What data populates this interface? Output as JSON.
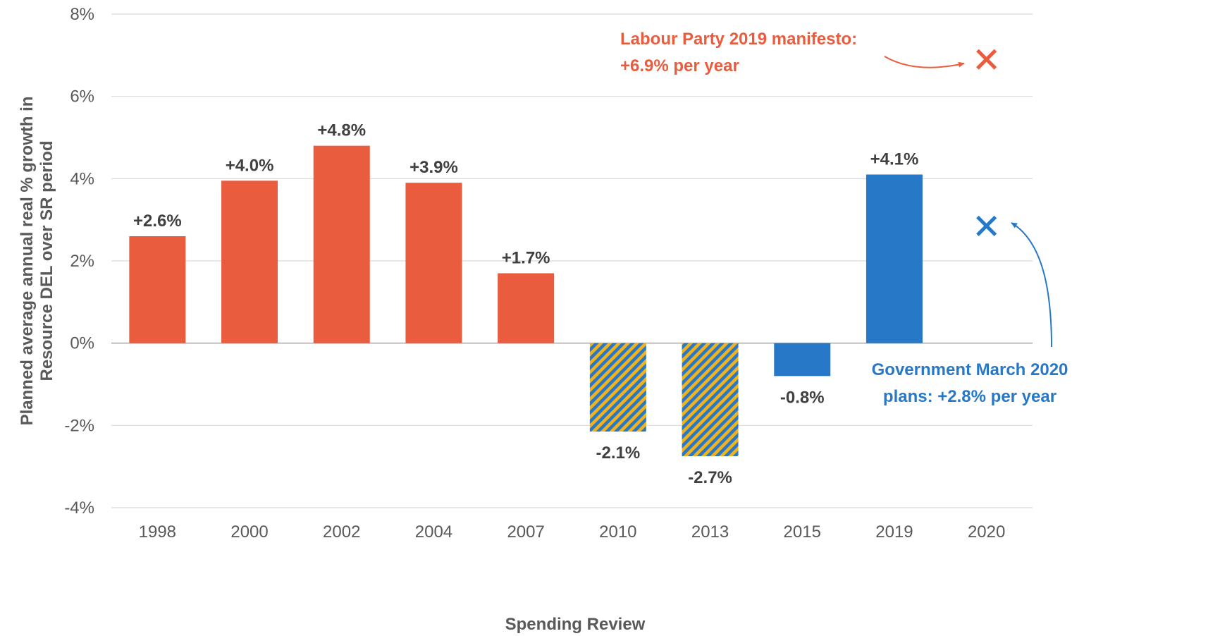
{
  "chart_data": {
    "type": "bar",
    "title": "",
    "xlabel": "Spending Review",
    "ylabel": "Planned average annual real % growth in Resource DEL over SR period",
    "ylim": [
      -4,
      8
    ],
    "yticks": [
      -4,
      -2,
      0,
      2,
      4,
      6,
      8
    ],
    "ytick_labels": [
      "-4%",
      "-2%",
      "0%",
      "2%",
      "4%",
      "6%",
      "8%"
    ],
    "grid": true,
    "categories": [
      "1998",
      "2000",
      "2002",
      "2004",
      "2007",
      "2010",
      "2013",
      "2015",
      "2019",
      "2020"
    ],
    "bars": [
      {
        "category": "1998",
        "value": 2.6,
        "label": "+2.6%",
        "style": "labour"
      },
      {
        "category": "2000",
        "value": 3.95,
        "label": "+4.0%",
        "style": "labour"
      },
      {
        "category": "2002",
        "value": 4.8,
        "label": "+4.8%",
        "style": "labour"
      },
      {
        "category": "2004",
        "value": 3.9,
        "label": "+3.9%",
        "style": "labour"
      },
      {
        "category": "2007",
        "value": 1.7,
        "label": "+1.7%",
        "style": "labour"
      },
      {
        "category": "2010",
        "value": -2.15,
        "label": "-2.1%",
        "style": "coalition"
      },
      {
        "category": "2013",
        "value": -2.75,
        "label": "-2.7%",
        "style": "coalition"
      },
      {
        "category": "2015",
        "value": -0.8,
        "label": "-0.8%",
        "style": "conservative"
      },
      {
        "category": "2019",
        "value": 4.1,
        "label": "+4.1%",
        "style": "conservative"
      }
    ],
    "markers": [
      {
        "category": "2020",
        "value": 6.9,
        "color": "#E95C3E",
        "symbol": "cross"
      },
      {
        "category": "2020",
        "value": 2.85,
        "color": "#2878C8",
        "symbol": "cross"
      }
    ],
    "annotations": [
      {
        "lines": [
          "Labour Party 2019 manifesto:",
          "+6.9% per year"
        ],
        "color": "#E95C3E"
      },
      {
        "lines": [
          "Government March 2020",
          "plans: +2.8% per year"
        ],
        "color": "#2878C8"
      }
    ],
    "colors": {
      "labour": "#E95C3E",
      "conservative": "#2878C8",
      "coalition_a": "#2878C8",
      "coalition_b": "#F2B21D",
      "grid": "#D9D9D9",
      "text": "#595959",
      "label": "#404040"
    }
  }
}
